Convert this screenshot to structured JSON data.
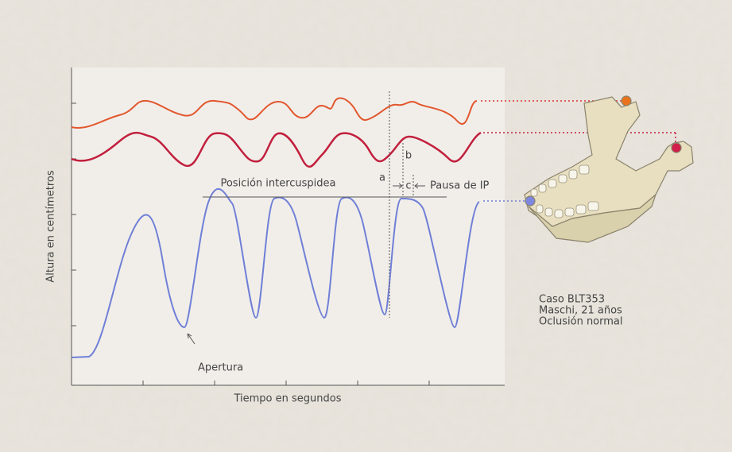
{
  "figure": {
    "y_axis_label": "Altura en centímetros",
    "x_axis_label": "Tiempo en segundos",
    "annotations": {
      "intercuspal": "Posición intercuspidea",
      "pause": "Pausa de IP",
      "a": "a",
      "b": "b",
      "c": "c",
      "opening": "Apertura"
    },
    "case": [
      "Caso BLT353",
      "Maschi, 21 años",
      "Oclusión normal"
    ]
  }
}
